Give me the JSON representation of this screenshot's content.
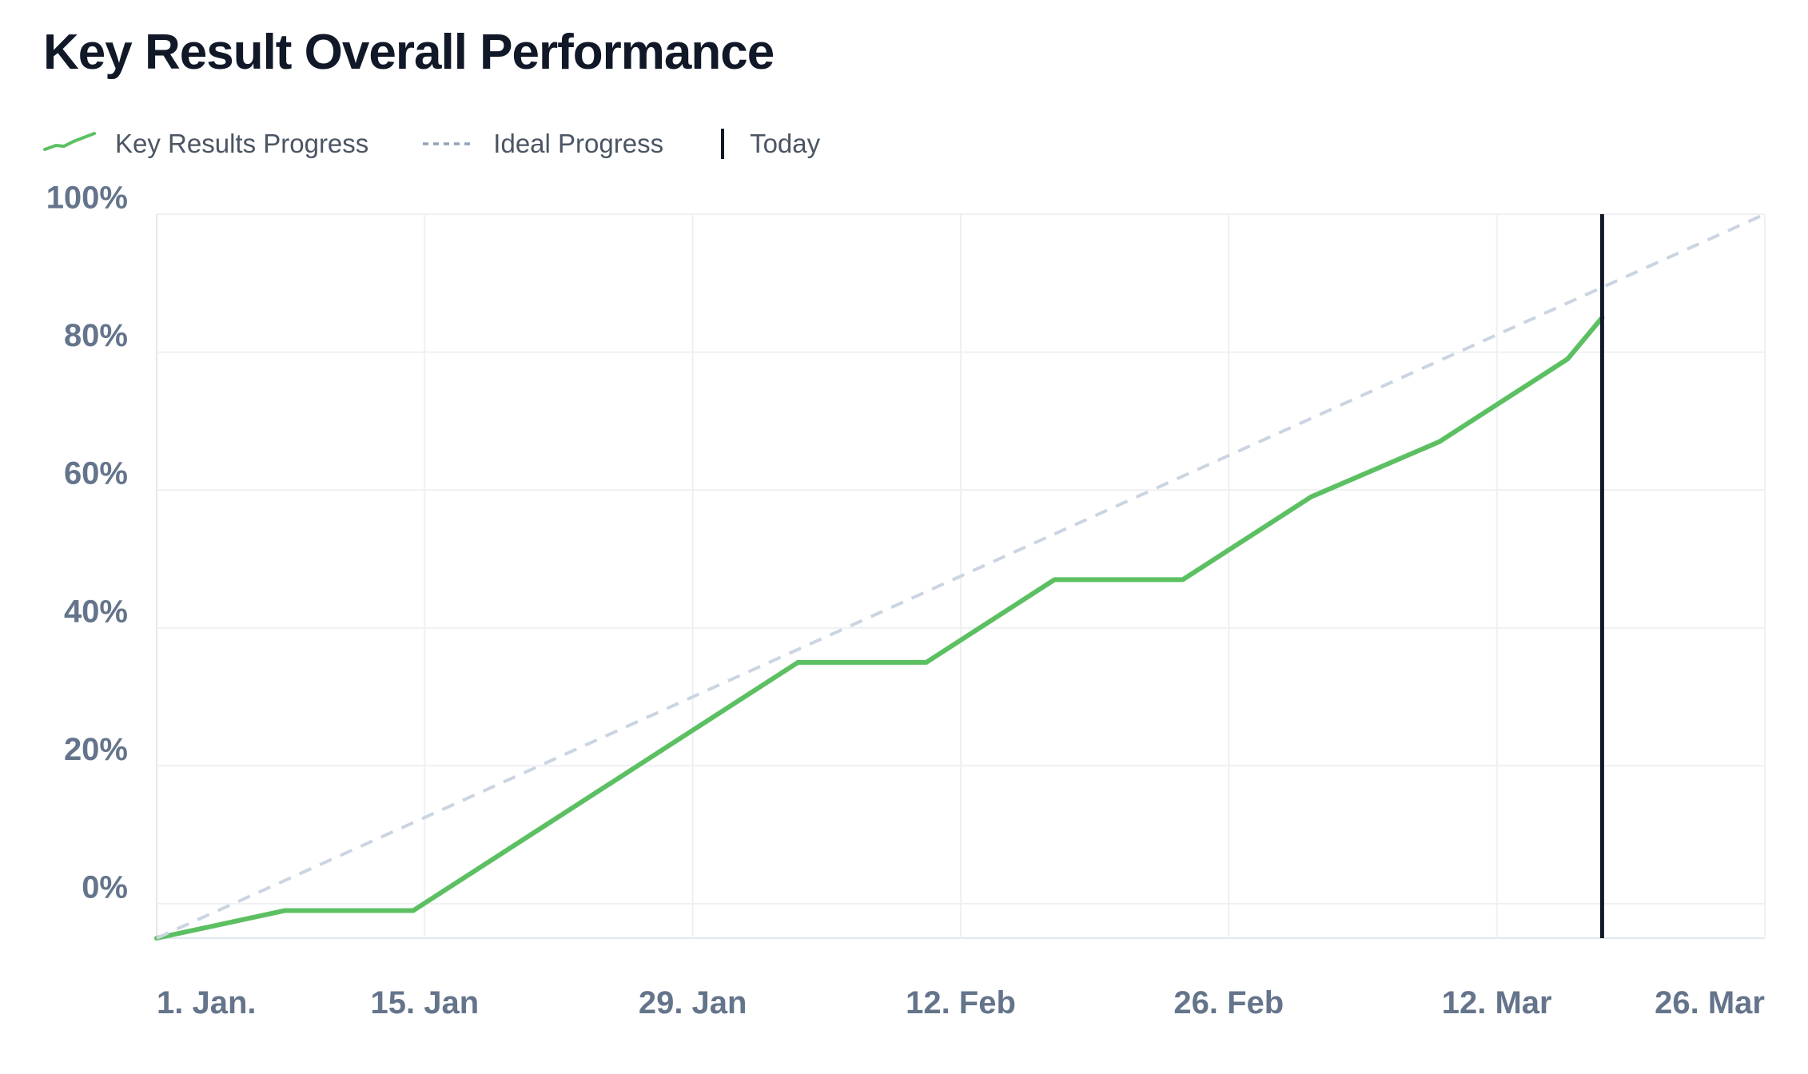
{
  "title": "Key Result Overall Performance",
  "legend": {
    "progress_label": "Key Results Progress",
    "ideal_label": "Ideal Progress",
    "today_label": "Today"
  },
  "colors": {
    "progress": "#5cc062",
    "ideal": "#cbd5e1",
    "today": "#111827",
    "grid": "#eef0f3",
    "axis_text": "#64748b"
  },
  "chart_data": {
    "type": "line",
    "title": "Key Result Overall Performance",
    "x_unit": "days since 1 Jan",
    "xlim": [
      0,
      84
    ],
    "ylim": [
      -5,
      100
    ],
    "x_ticks": [
      {
        "x": 0,
        "label": "1. Jan."
      },
      {
        "x": 14,
        "label": "15. Jan"
      },
      {
        "x": 28,
        "label": "29. Jan"
      },
      {
        "x": 42,
        "label": "12. Feb"
      },
      {
        "x": 56,
        "label": "26. Feb"
      },
      {
        "x": 70,
        "label": "12. Mar"
      },
      {
        "x": 84,
        "label": "26. Mar"
      }
    ],
    "y_ticks": [
      {
        "y": 100,
        "label": "100%"
      },
      {
        "y": 80,
        "label": "80%"
      },
      {
        "y": 60,
        "label": "60%"
      },
      {
        "y": 40,
        "label": "40%"
      },
      {
        "y": 20,
        "label": "20%"
      },
      {
        "y": 0,
        "label": "0%"
      }
    ],
    "series": [
      {
        "name": "Key Results Progress",
        "style": "solid",
        "x": [
          0,
          6.7,
          13.4,
          20.1,
          26.8,
          33.5,
          40.2,
          46.9,
          53.6,
          60.3,
          67.0,
          73.7,
          75.5
        ],
        "y": [
          -5,
          -1,
          -1,
          11,
          23,
          35,
          35,
          47,
          47,
          59,
          67,
          79,
          85
        ]
      },
      {
        "name": "Ideal Progress",
        "style": "dashed",
        "x": [
          0,
          84
        ],
        "y": [
          -5,
          100
        ]
      }
    ],
    "today_x": 75.5
  }
}
